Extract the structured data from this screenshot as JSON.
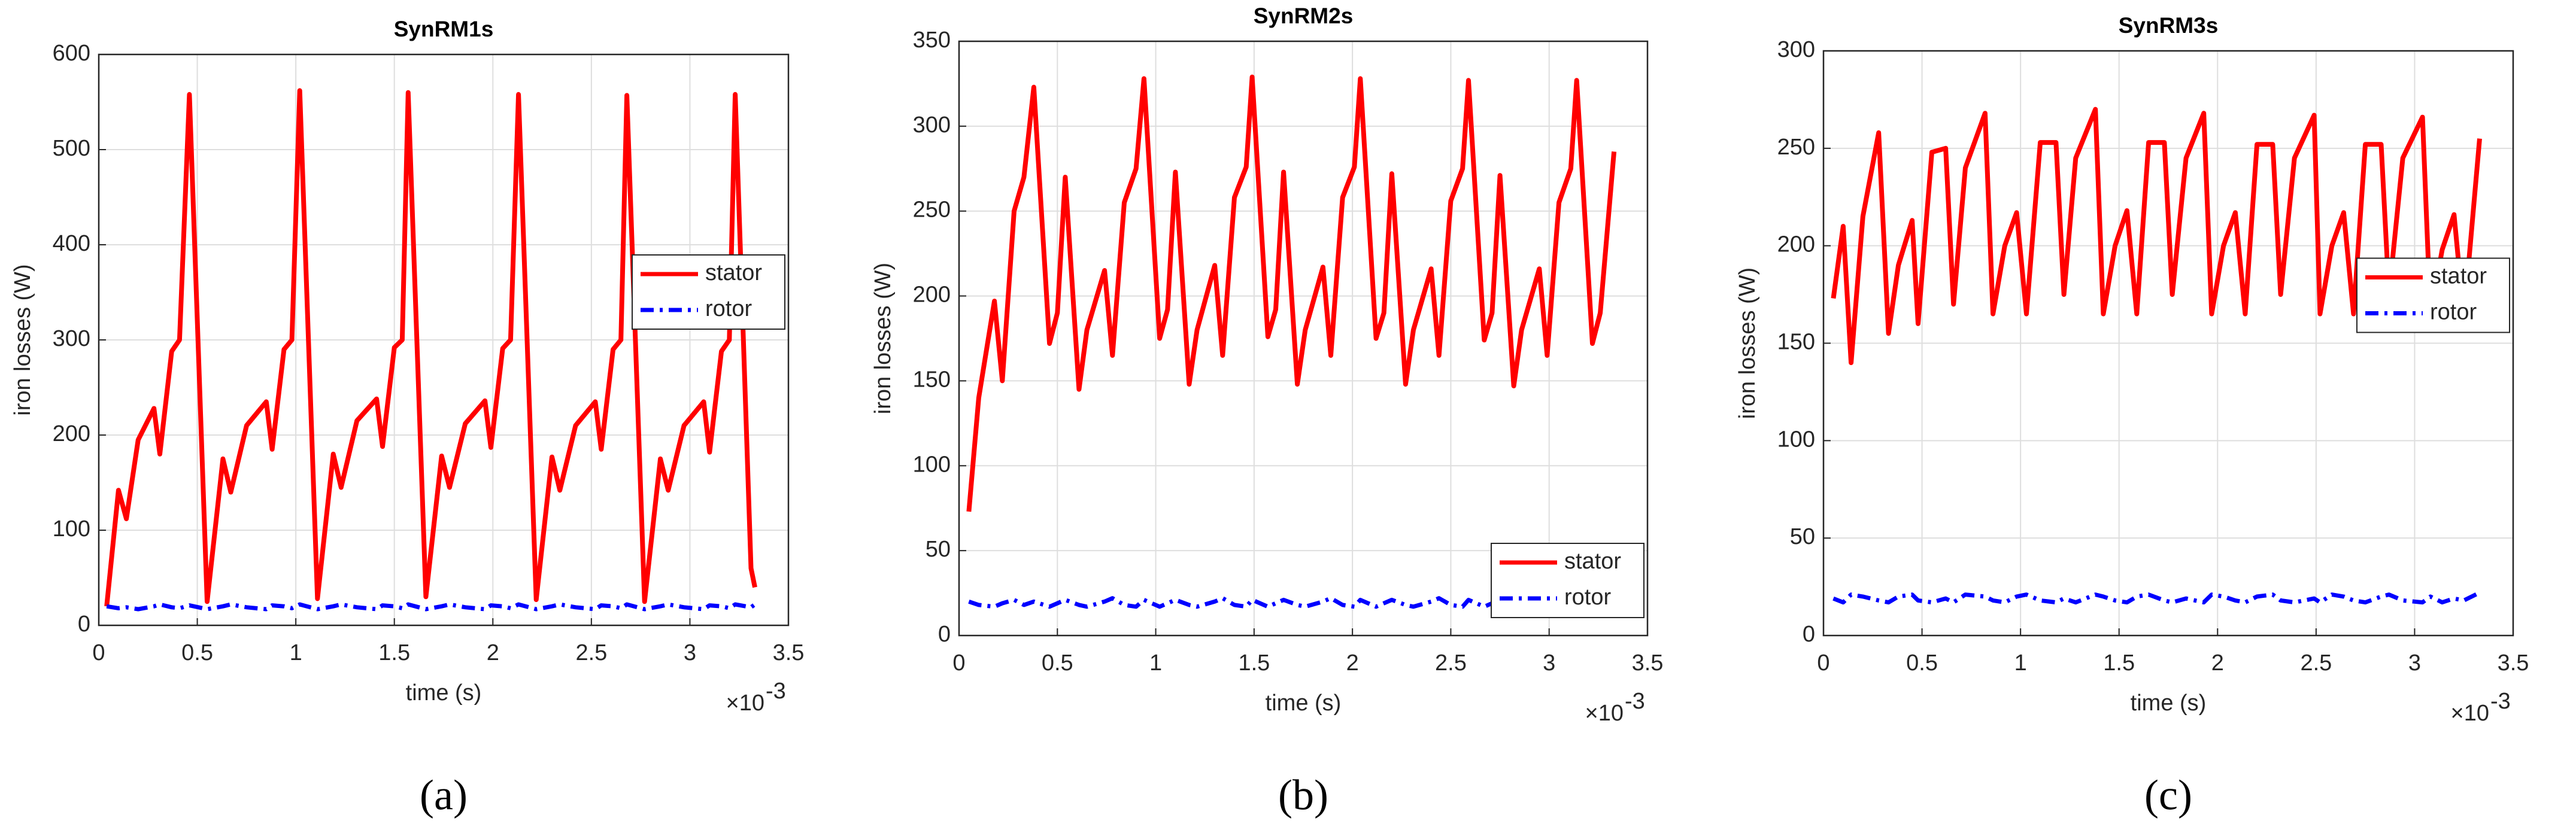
{
  "chart_data": [
    {
      "type": "line",
      "title": "SynRM1s",
      "xlabel": "time (s)",
      "ylabel": "iron losses (W)",
      "x_exponent_base": "×10",
      "x_exponent": "-3",
      "panel_label": "(a)",
      "xlim": [
        0,
        3.5
      ],
      "xticks": [
        0,
        0.5,
        1,
        1.5,
        2,
        2.5,
        3,
        3.5
      ],
      "ylim": [
        0,
        600
      ],
      "yticks": [
        0,
        100,
        200,
        300,
        400,
        500,
        600
      ],
      "grid": true,
      "legend_loc": "right",
      "x": [
        0.04,
        0.1,
        0.14,
        0.2,
        0.28,
        0.31,
        0.37,
        0.41,
        0.46,
        0.55,
        0.63,
        0.67,
        0.75,
        0.85,
        0.88,
        0.94,
        0.98,
        1.02,
        1.11,
        1.19,
        1.23,
        1.31,
        1.41,
        1.44,
        1.5,
        1.54,
        1.57,
        1.66,
        1.74,
        1.78,
        1.86,
        1.96,
        1.99,
        2.05,
        2.09,
        2.13,
        2.22,
        2.3,
        2.34,
        2.42,
        2.52,
        2.55,
        2.61,
        2.65,
        2.68,
        2.77,
        2.85,
        2.89,
        2.97,
        3.07,
        3.1,
        3.16,
        3.2,
        3.23,
        3.31,
        3.33
      ],
      "series": [
        {
          "name": "stator",
          "color": "#ff0000",
          "dash": "solid",
          "values": [
            20,
            142,
            112,
            195,
            228,
            180,
            288,
            300,
            558,
            25,
            175,
            140,
            210,
            235,
            185,
            290,
            300,
            562,
            28,
            180,
            145,
            215,
            238,
            188,
            292,
            300,
            560,
            30,
            178,
            145,
            212,
            236,
            187,
            291,
            300,
            558,
            27,
            177,
            142,
            210,
            235,
            185,
            290,
            300,
            557,
            25,
            175,
            142,
            210,
            235,
            182,
            288,
            300,
            558,
            60,
            40
          ]
        },
        {
          "name": "rotor",
          "color": "#0000ff",
          "dash": "dashdot",
          "values": [
            20,
            18,
            19,
            17,
            20,
            22,
            19,
            18,
            21,
            17,
            20,
            22,
            19,
            17,
            21,
            20,
            18,
            22,
            17,
            20,
            22,
            19,
            17,
            21,
            20,
            18,
            22,
            17,
            20,
            22,
            19,
            17,
            21,
            20,
            18,
            22,
            17,
            20,
            22,
            19,
            17,
            21,
            20,
            18,
            22,
            17,
            20,
            22,
            19,
            17,
            21,
            20,
            18,
            22,
            19,
            22
          ]
        }
      ]
    },
    {
      "type": "line",
      "title": "SynRM2s",
      "xlabel": "time (s)",
      "ylabel": "iron losses (W)",
      "x_exponent_base": "×10",
      "x_exponent": "-3",
      "panel_label": "(b)",
      "xlim": [
        0,
        3.5
      ],
      "xticks": [
        0,
        0.5,
        1,
        1.5,
        2,
        2.5,
        3,
        3.5
      ],
      "ylim": [
        0,
        350
      ],
      "yticks": [
        0,
        50,
        100,
        150,
        200,
        250,
        300,
        350
      ],
      "grid": true,
      "legend_loc": "lower right",
      "x": [
        0.05,
        0.1,
        0.18,
        0.22,
        0.28,
        0.33,
        0.38,
        0.46,
        0.5,
        0.54,
        0.61,
        0.65,
        0.74,
        0.78,
        0.84,
        0.9,
        0.94,
        1.02,
        1.06,
        1.1,
        1.17,
        1.21,
        1.3,
        1.34,
        1.4,
        1.46,
        1.49,
        1.57,
        1.61,
        1.65,
        1.72,
        1.76,
        1.85,
        1.89,
        1.95,
        2.01,
        2.04,
        2.12,
        2.16,
        2.2,
        2.27,
        2.31,
        2.4,
        2.44,
        2.5,
        2.56,
        2.59,
        2.67,
        2.71,
        2.75,
        2.82,
        2.86,
        2.95,
        2.99,
        3.05,
        3.11,
        3.14,
        3.22,
        3.26,
        3.33
      ],
      "series": [
        {
          "name": "stator",
          "color": "#ff0000",
          "dash": "solid",
          "values": [
            73,
            140,
            197,
            150,
            250,
            270,
            323,
            172,
            190,
            270,
            145,
            180,
            215,
            165,
            255,
            275,
            328,
            175,
            192,
            273,
            148,
            180,
            218,
            165,
            258,
            276,
            329,
            176,
            192,
            273,
            148,
            180,
            217,
            165,
            258,
            276,
            328,
            175,
            190,
            272,
            148,
            180,
            216,
            165,
            256,
            275,
            327,
            174,
            190,
            271,
            147,
            180,
            216,
            165,
            255,
            275,
            327,
            172,
            190,
            285
          ]
        },
        {
          "name": "rotor",
          "color": "#0000ff",
          "dash": "dashdot",
          "values": [
            20,
            18,
            17,
            19,
            21,
            18,
            20,
            17,
            19,
            21,
            18,
            17,
            20,
            22,
            18,
            17,
            21,
            17,
            19,
            21,
            18,
            17,
            20,
            22,
            18,
            17,
            21,
            17,
            19,
            21,
            18,
            17,
            20,
            22,
            18,
            17,
            21,
            17,
            19,
            21,
            18,
            17,
            20,
            22,
            18,
            17,
            21,
            17,
            19,
            21,
            18,
            17,
            20,
            22,
            18,
            17,
            21,
            18,
            22,
            17
          ]
        }
      ]
    },
    {
      "type": "line",
      "title": "SynRM3s",
      "xlabel": "time (s)",
      "ylabel": "iron losses (W)",
      "x_exponent_base": "×10",
      "x_exponent": "-3",
      "panel_label": "(c)",
      "xlim": [
        0,
        3.5
      ],
      "xticks": [
        0,
        0.5,
        1,
        1.5,
        2,
        2.5,
        3,
        3.5
      ],
      "ylim": [
        0,
        300
      ],
      "yticks": [
        0,
        50,
        100,
        150,
        200,
        250,
        300
      ],
      "grid": true,
      "legend_loc": "right",
      "x": [
        0.05,
        0.1,
        0.14,
        0.2,
        0.28,
        0.33,
        0.38,
        0.45,
        0.48,
        0.55,
        0.62,
        0.66,
        0.72,
        0.82,
        0.86,
        0.92,
        0.98,
        1.03,
        1.1,
        1.18,
        1.22,
        1.28,
        1.38,
        1.42,
        1.48,
        1.54,
        1.59,
        1.65,
        1.73,
        1.77,
        1.84,
        1.93,
        1.97,
        2.03,
        2.09,
        2.14,
        2.2,
        2.28,
        2.32,
        2.39,
        2.49,
        2.52,
        2.58,
        2.64,
        2.69,
        2.75,
        2.83,
        2.87,
        2.94,
        3.04,
        3.08,
        3.14,
        3.2,
        3.25,
        3.33
      ],
      "series": [
        {
          "name": "stator",
          "color": "#ff0000",
          "dash": "solid",
          "values": [
            173,
            210,
            140,
            215,
            258,
            155,
            190,
            213,
            160,
            248,
            250,
            170,
            240,
            268,
            165,
            200,
            217,
            165,
            253,
            253,
            175,
            245,
            270,
            165,
            200,
            218,
            165,
            253,
            253,
            175,
            245,
            268,
            165,
            200,
            217,
            165,
            252,
            252,
            175,
            245,
            267,
            165,
            200,
            217,
            165,
            252,
            252,
            175,
            245,
            266,
            165,
            198,
            216,
            163,
            255
          ]
        },
        {
          "name": "rotor",
          "color": "#0000ff",
          "dash": "dashdot",
          "values": [
            19,
            17,
            21,
            20,
            18,
            17,
            20,
            21,
            18,
            17,
            19,
            17,
            21,
            20,
            18,
            17,
            20,
            21,
            18,
            17,
            19,
            17,
            21,
            20,
            18,
            17,
            20,
            21,
            18,
            17,
            19,
            17,
            21,
            20,
            18,
            17,
            20,
            21,
            18,
            17,
            19,
            17,
            21,
            20,
            18,
            17,
            20,
            21,
            18,
            17,
            20,
            17,
            19,
            18,
            22
          ]
        }
      ]
    }
  ]
}
